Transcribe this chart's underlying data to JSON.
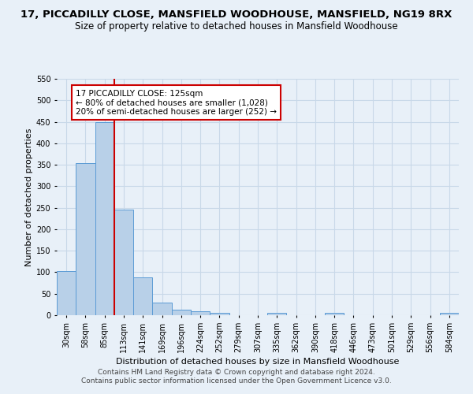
{
  "title": "17, PICCADILLY CLOSE, MANSFIELD WOODHOUSE, MANSFIELD, NG19 8RX",
  "subtitle": "Size of property relative to detached houses in Mansfield Woodhouse",
  "xlabel": "Distribution of detached houses by size in Mansfield Woodhouse",
  "ylabel": "Number of detached properties",
  "categories": [
    "30sqm",
    "58sqm",
    "85sqm",
    "113sqm",
    "141sqm",
    "169sqm",
    "196sqm",
    "224sqm",
    "252sqm",
    "279sqm",
    "307sqm",
    "335sqm",
    "362sqm",
    "390sqm",
    "418sqm",
    "446sqm",
    "473sqm",
    "501sqm",
    "529sqm",
    "556sqm",
    "584sqm"
  ],
  "values": [
    103,
    354,
    449,
    246,
    88,
    30,
    13,
    9,
    5,
    0,
    0,
    5,
    0,
    0,
    5,
    0,
    0,
    0,
    0,
    0,
    5
  ],
  "bar_color": "#b8d0e8",
  "bar_edge_color": "#5b9bd5",
  "grid_color": "#c8d8e8",
  "background_color": "#e8f0f8",
  "vline_color": "#cc0000",
  "annotation_text": "17 PICCADILLY CLOSE: 125sqm\n← 80% of detached houses are smaller (1,028)\n20% of semi-detached houses are larger (252) →",
  "annotation_box_color": "#ffffff",
  "annotation_box_edge_color": "#cc0000",
  "ylim": [
    0,
    550
  ],
  "yticks": [
    0,
    50,
    100,
    150,
    200,
    250,
    300,
    350,
    400,
    450,
    500,
    550
  ],
  "footer": "Contains HM Land Registry data © Crown copyright and database right 2024.\nContains public sector information licensed under the Open Government Licence v3.0.",
  "title_fontsize": 9.5,
  "subtitle_fontsize": 8.5,
  "tick_fontsize": 7,
  "xlabel_fontsize": 8,
  "ylabel_fontsize": 8,
  "footer_fontsize": 6.5,
  "annotation_fontsize": 7.5
}
